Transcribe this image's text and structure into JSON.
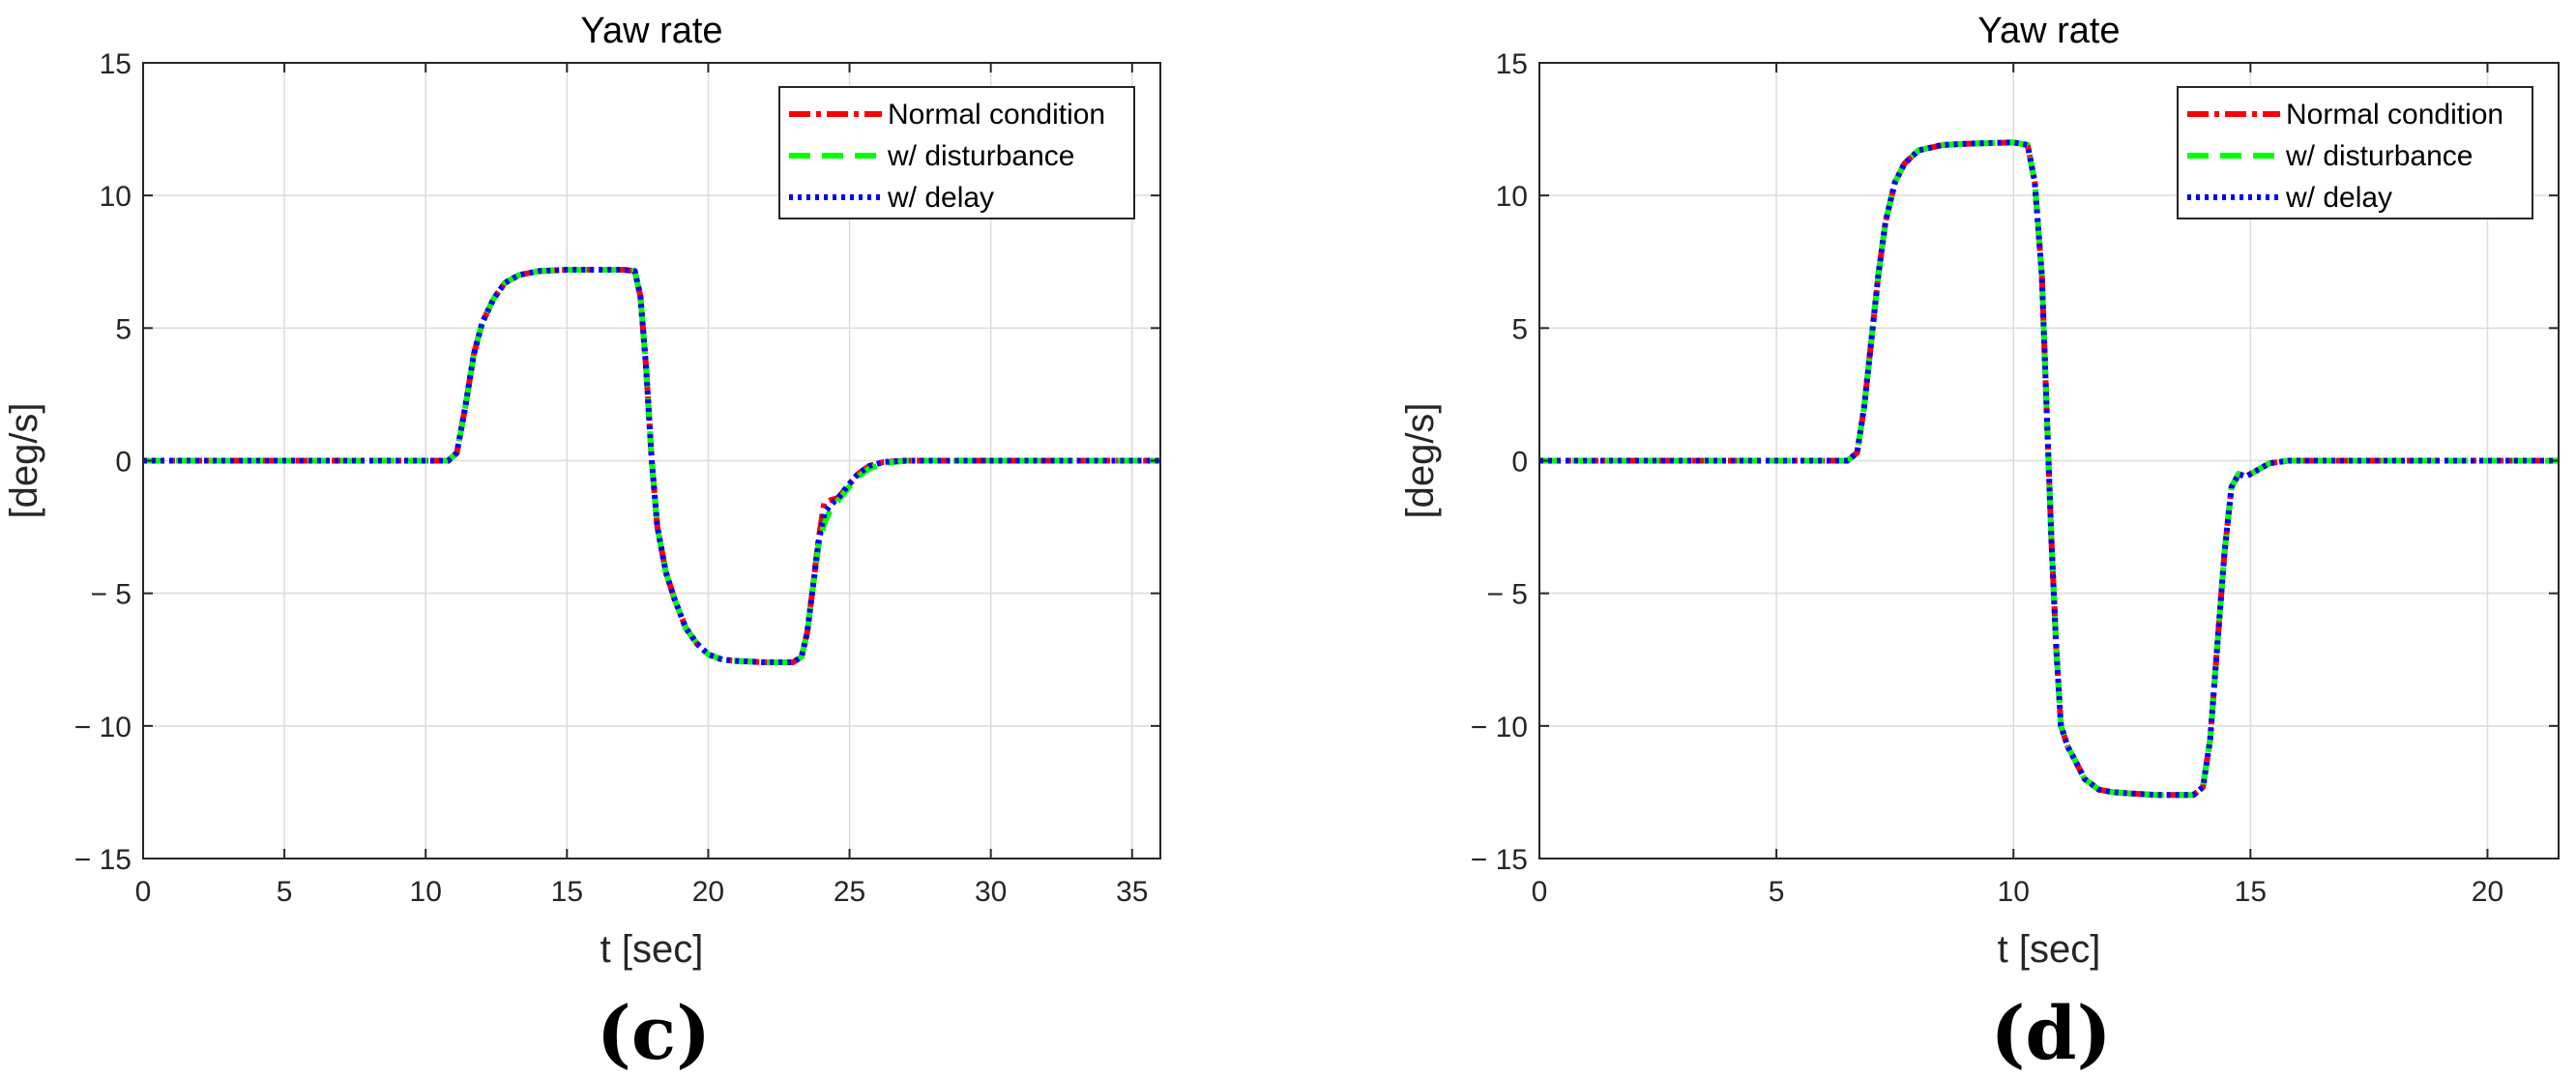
{
  "chart_data": [
    {
      "type": "line",
      "title": "Yaw rate",
      "xlabel": "t [sec]",
      "ylabel": "[deg/s]",
      "panel_label": "(c)",
      "xlim": [
        0,
        36
      ],
      "ylim": [
        -15,
        15
      ],
      "xticks": [
        0,
        5,
        10,
        15,
        20,
        25,
        30,
        35
      ],
      "xtick_labels": [
        "0",
        "5",
        "10",
        "15",
        "20",
        "25",
        "30",
        "35"
      ],
      "yticks": [
        15,
        10,
        5,
        0,
        -5,
        -10,
        -15
      ],
      "ytick_labels": [
        "15",
        "10",
        "5",
        "0",
        "− 5",
        "− 10",
        "− 15"
      ],
      "grid": true,
      "legend_position": "top-right",
      "series": [
        {
          "name": "Normal condition",
          "color": "#ff0000",
          "dash": "dashdot",
          "x": [
            0,
            10.8,
            11.1,
            11.4,
            11.7,
            12.0,
            12.4,
            12.8,
            13.3,
            14.0,
            15.0,
            16.0,
            17.0,
            17.4,
            17.6,
            17.8,
            18.0,
            18.2,
            18.5,
            18.8,
            19.2,
            19.6,
            20.0,
            20.5,
            21.0,
            22.0,
            23.0,
            23.3,
            23.5,
            23.7,
            23.9,
            24.1,
            24.3,
            24.6,
            24.9,
            25.3,
            25.7,
            26.2,
            27.0,
            28.0,
            30.0,
            36.0
          ],
          "y": [
            0,
            0,
            0.3,
            2.0,
            4.0,
            5.2,
            6.1,
            6.7,
            7.0,
            7.15,
            7.2,
            7.2,
            7.2,
            7.15,
            6.2,
            3.5,
            0,
            -2.5,
            -4.2,
            -5.2,
            -6.3,
            -6.9,
            -7.3,
            -7.5,
            -7.55,
            -7.6,
            -7.6,
            -7.4,
            -6.5,
            -4.8,
            -3.0,
            -1.6,
            -1.5,
            -1.4,
            -1.0,
            -0.5,
            -0.2,
            -0.05,
            0,
            0,
            0,
            0
          ]
        },
        {
          "name": "w/ disturbance",
          "color": "#00ff00",
          "dash": "dashed",
          "x": [
            0,
            10.8,
            11.1,
            11.4,
            11.7,
            12.0,
            12.4,
            12.8,
            13.3,
            14.0,
            15.0,
            16.0,
            17.0,
            17.4,
            17.6,
            17.8,
            18.0,
            18.2,
            18.5,
            18.8,
            19.2,
            19.6,
            20.0,
            20.5,
            21.0,
            22.0,
            23.0,
            23.3,
            23.5,
            23.7,
            23.9,
            24.1,
            24.3,
            24.6,
            24.9,
            25.3,
            25.7,
            26.2,
            27.0,
            28.0,
            30.0,
            36.0
          ],
          "y": [
            0,
            0,
            0.3,
            2.0,
            4.0,
            5.2,
            6.1,
            6.7,
            7.0,
            7.15,
            7.2,
            7.2,
            7.2,
            7.15,
            6.2,
            3.5,
            0,
            -2.5,
            -4.2,
            -5.2,
            -6.3,
            -6.9,
            -7.3,
            -7.5,
            -7.55,
            -7.6,
            -7.6,
            -7.4,
            -6.5,
            -4.8,
            -3.2,
            -2.4,
            -1.9,
            -1.5,
            -1.1,
            -0.6,
            -0.3,
            -0.1,
            0,
            0,
            0,
            0
          ]
        },
        {
          "name": "w/ delay",
          "color": "#0000ff",
          "dash": "dotted",
          "x": [
            0,
            10.8,
            11.1,
            11.4,
            11.7,
            12.0,
            12.4,
            12.8,
            13.3,
            14.0,
            15.0,
            16.0,
            17.0,
            17.4,
            17.6,
            17.8,
            18.0,
            18.2,
            18.5,
            18.8,
            19.2,
            19.6,
            20.0,
            20.5,
            21.0,
            22.0,
            23.0,
            23.3,
            23.5,
            23.7,
            23.9,
            24.1,
            24.3,
            24.6,
            24.9,
            25.3,
            25.7,
            26.2,
            27.0,
            28.0,
            30.0,
            36.0
          ],
          "y": [
            0,
            0,
            0.3,
            2.0,
            4.0,
            5.2,
            6.1,
            6.7,
            7.0,
            7.15,
            7.2,
            7.2,
            7.2,
            7.15,
            6.2,
            3.5,
            0,
            -2.5,
            -4.2,
            -5.2,
            -6.3,
            -6.9,
            -7.3,
            -7.5,
            -7.55,
            -7.6,
            -7.6,
            -7.4,
            -6.5,
            -4.8,
            -3.1,
            -2.0,
            -1.7,
            -1.4,
            -1.0,
            -0.5,
            -0.2,
            -0.05,
            0,
            0,
            0,
            0
          ]
        }
      ]
    },
    {
      "type": "line",
      "title": "Yaw rate",
      "xlabel": "t [sec]",
      "ylabel": "[deg/s]",
      "panel_label": "(d)",
      "xlim": [
        0,
        21.5
      ],
      "ylim": [
        -15,
        15
      ],
      "xticks": [
        0,
        5,
        10,
        15,
        20
      ],
      "xtick_labels": [
        "0",
        "5",
        "10",
        "15",
        "20"
      ],
      "yticks": [
        15,
        10,
        5,
        0,
        -5,
        -10,
        -15
      ],
      "ytick_labels": [
        "15",
        "10",
        "5",
        "0",
        "− 5",
        "− 10",
        "− 15"
      ],
      "grid": true,
      "legend_position": "top-right",
      "series": [
        {
          "name": "Normal condition",
          "color": "#ff0000",
          "dash": "dashdot",
          "x": [
            0,
            6.5,
            6.7,
            6.85,
            7.0,
            7.15,
            7.3,
            7.5,
            7.7,
            8.0,
            8.5,
            9.0,
            10.0,
            10.3,
            10.45,
            10.6,
            10.7,
            10.8,
            10.9,
            11.0,
            11.15,
            11.3,
            11.5,
            11.8,
            12.1,
            12.5,
            13.0,
            13.8,
            14.0,
            14.15,
            14.3,
            14.45,
            14.6,
            14.75,
            14.9,
            15.1,
            15.4,
            15.8,
            16.5,
            21.5
          ],
          "y": [
            0,
            0,
            0.3,
            2.0,
            4.5,
            7.0,
            9.0,
            10.5,
            11.2,
            11.7,
            11.9,
            11.95,
            12.0,
            11.9,
            10.5,
            7.0,
            2.0,
            -3.0,
            -7.0,
            -10.0,
            -10.8,
            -11.3,
            -12.0,
            -12.4,
            -12.5,
            -12.55,
            -12.6,
            -12.6,
            -12.3,
            -10.5,
            -7.0,
            -3.5,
            -1.0,
            -0.5,
            -0.6,
            -0.4,
            -0.1,
            0,
            0,
            0
          ]
        },
        {
          "name": "w/ disturbance",
          "color": "#00ff00",
          "dash": "dashed",
          "x": [
            0,
            6.5,
            6.7,
            6.85,
            7.0,
            7.15,
            7.3,
            7.5,
            7.7,
            8.0,
            8.5,
            9.0,
            10.0,
            10.3,
            10.45,
            10.6,
            10.7,
            10.8,
            10.9,
            11.0,
            11.15,
            11.3,
            11.5,
            11.8,
            12.1,
            12.5,
            13.0,
            13.8,
            14.0,
            14.15,
            14.3,
            14.45,
            14.6,
            14.75,
            14.9,
            15.1,
            15.4,
            15.8,
            16.5,
            21.5
          ],
          "y": [
            0,
            0,
            0.3,
            2.0,
            4.5,
            7.0,
            9.0,
            10.5,
            11.2,
            11.7,
            11.9,
            11.95,
            12.0,
            11.9,
            10.5,
            7.0,
            2.0,
            -3.0,
            -7.0,
            -10.0,
            -10.8,
            -11.3,
            -12.0,
            -12.4,
            -12.5,
            -12.55,
            -12.6,
            -12.6,
            -12.3,
            -10.5,
            -7.0,
            -3.5,
            -1.0,
            -0.5,
            -0.6,
            -0.4,
            -0.1,
            0,
            0,
            0
          ]
        },
        {
          "name": "w/ delay",
          "color": "#0000ff",
          "dash": "dotted",
          "x": [
            0,
            6.5,
            6.7,
            6.85,
            7.0,
            7.15,
            7.3,
            7.5,
            7.7,
            8.0,
            8.5,
            9.0,
            10.0,
            10.3,
            10.45,
            10.6,
            10.7,
            10.8,
            10.9,
            11.0,
            11.15,
            11.3,
            11.5,
            11.8,
            12.1,
            12.5,
            13.0,
            13.8,
            14.0,
            14.15,
            14.3,
            14.45,
            14.6,
            14.75,
            14.9,
            15.1,
            15.4,
            15.8,
            16.5,
            21.5
          ],
          "y": [
            0,
            0,
            0.3,
            2.0,
            4.5,
            7.0,
            9.0,
            10.5,
            11.2,
            11.7,
            11.9,
            11.95,
            12.0,
            11.9,
            10.5,
            7.0,
            2.0,
            -3.0,
            -7.0,
            -10.0,
            -10.8,
            -11.3,
            -12.0,
            -12.4,
            -12.5,
            -12.55,
            -12.6,
            -12.6,
            -12.3,
            -10.5,
            -7.0,
            -3.5,
            -1.0,
            -0.5,
            -0.6,
            -0.4,
            -0.1,
            0,
            0,
            0
          ]
        }
      ]
    }
  ]
}
